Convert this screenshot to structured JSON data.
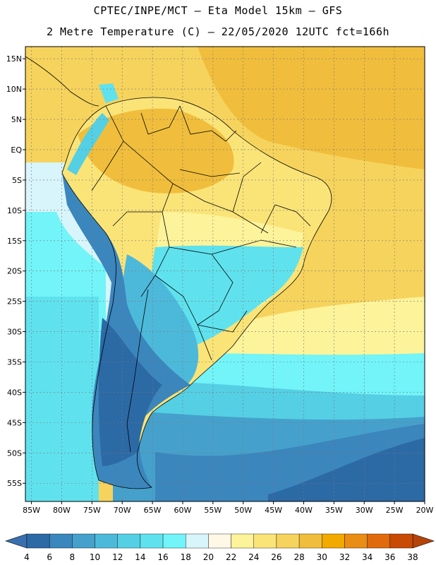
{
  "header": {
    "title_line1": "CPTEC/INPE/MCT –  Eta Model 15km – GFS",
    "title_line2": "2 Metre Temperature (C) – 22/05/2020 12UTC fct=166h"
  },
  "map": {
    "lon_range": [
      -86,
      -20
    ],
    "lat_range": [
      -58,
      17
    ],
    "lon_ticks": [
      {
        "value": -85,
        "label": "85W"
      },
      {
        "value": -80,
        "label": "80W"
      },
      {
        "value": -75,
        "label": "75W"
      },
      {
        "value": -70,
        "label": "70W"
      },
      {
        "value": -65,
        "label": "65W"
      },
      {
        "value": -60,
        "label": "60W"
      },
      {
        "value": -55,
        "label": "55W"
      },
      {
        "value": -50,
        "label": "50W"
      },
      {
        "value": -45,
        "label": "45W"
      },
      {
        "value": -40,
        "label": "40W"
      },
      {
        "value": -35,
        "label": "35W"
      },
      {
        "value": -30,
        "label": "30W"
      },
      {
        "value": -25,
        "label": "25W"
      },
      {
        "value": -20,
        "label": "20W"
      }
    ],
    "lat_ticks": [
      {
        "value": 15,
        "label": "15N"
      },
      {
        "value": 10,
        "label": "10N"
      },
      {
        "value": 5,
        "label": "5N"
      },
      {
        "value": 0,
        "label": "EQ"
      },
      {
        "value": -5,
        "label": "5S"
      },
      {
        "value": -10,
        "label": "10S"
      },
      {
        "value": -15,
        "label": "15S"
      },
      {
        "value": -20,
        "label": "20S"
      },
      {
        "value": -25,
        "label": "25S"
      },
      {
        "value": -30,
        "label": "30S"
      },
      {
        "value": -35,
        "label": "35S"
      },
      {
        "value": -40,
        "label": "40S"
      },
      {
        "value": -45,
        "label": "45S"
      },
      {
        "value": -50,
        "label": "50S"
      },
      {
        "value": -55,
        "label": "55S"
      }
    ],
    "gridlines": true
  },
  "colorbar": {
    "values": [
      "4",
      "6",
      "8",
      "10",
      "12",
      "14",
      "16",
      "18",
      "20",
      "22",
      "24",
      "26",
      "28",
      "30",
      "32",
      "34",
      "36",
      "38"
    ],
    "colors": [
      "#2c6aa6",
      "#3b86bd",
      "#45a1cc",
      "#4db9da",
      "#55cfe4",
      "#5fe2ee",
      "#72f4f8",
      "#d8f5fb",
      "#fff8e6",
      "#fcf39a",
      "#fae478",
      "#f6d35c",
      "#f0be3c",
      "#f2a900",
      "#ea8d14",
      "#e06a0c",
      "#c84a04"
    ],
    "low_color": "#3a6fae",
    "high_color": "#b6440a"
  },
  "regions": [
    {
      "name": "southern-ocean",
      "color": "#2c6aa6"
    },
    {
      "name": "argentina-sea",
      "color": "#45a1cc"
    },
    {
      "name": "mid-ocean",
      "color": "#55cfe4"
    },
    {
      "name": "warm-ocean",
      "color": "#fcf39a"
    },
    {
      "name": "tropical-ocean",
      "color": "#f6d35c"
    },
    {
      "name": "andes",
      "color": "#4db9da"
    },
    {
      "name": "amazon",
      "color": "#fae478"
    }
  ]
}
